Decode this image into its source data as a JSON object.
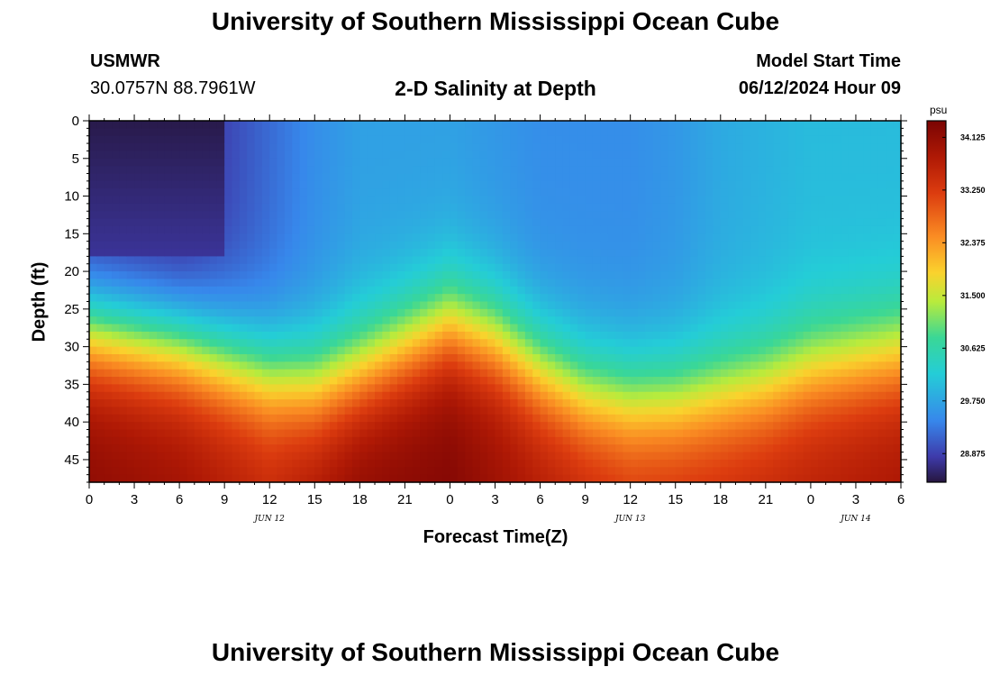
{
  "page_title": "University of Southern Mississippi Ocean Cube",
  "footer_title": "University of Southern Mississippi Ocean Cube",
  "station": {
    "id": "USMWR",
    "coords": "30.0757N  88.7961W"
  },
  "model_start": {
    "label": "Model Start Time",
    "value": "06/12/2024 Hour 09"
  },
  "chart_data": {
    "type": "heatmap",
    "title": "2-D Salinity at Depth",
    "xlabel": "Forecast Time(Z)",
    "ylabel": "Depth (ft)",
    "x_range_hours": [
      0,
      54
    ],
    "y_range_ft": [
      0,
      48
    ],
    "x_ticks": [
      "0",
      "3",
      "6",
      "9",
      "12",
      "15",
      "18",
      "21",
      "0",
      "3",
      "6",
      "9",
      "12",
      "15",
      "18",
      "21",
      "0",
      "3",
      "6"
    ],
    "date_labels": [
      {
        "text": "JUN 12",
        "hour": 12
      },
      {
        "text": "JUN 13",
        "hour": 36
      },
      {
        "text": "JUN 14",
        "hour": 51
      }
    ],
    "y_ticks": [
      0,
      5,
      10,
      15,
      20,
      25,
      30,
      35,
      40,
      45
    ],
    "colorbar": {
      "unit": "psu",
      "min": 28.4,
      "max": 34.4,
      "ticks": [
        "34.125",
        "33.250",
        "32.375",
        "31.500",
        "30.625",
        "29.750",
        "28.875"
      ]
    },
    "halocline_depth_ft": {
      "hours": [
        0,
        3,
        6,
        9,
        12,
        15,
        18,
        21,
        24,
        27,
        30,
        33,
        36,
        39,
        42,
        45,
        48,
        51,
        54
      ],
      "values": [
        28,
        29,
        30,
        32,
        34,
        35,
        33,
        30,
        27,
        29,
        33,
        36,
        37,
        37,
        36,
        35,
        33,
        32,
        31
      ]
    },
    "surface_salinity_psu": {
      "hours": [
        0,
        3,
        6,
        9,
        12,
        15,
        18,
        21,
        24,
        27,
        30,
        33,
        36,
        39,
        42,
        45,
        48,
        51,
        54
      ],
      "values": [
        28.6,
        28.6,
        28.6,
        28.9,
        29.2,
        29.5,
        29.7,
        29.7,
        29.7,
        29.6,
        29.5,
        29.5,
        29.5,
        29.6,
        29.8,
        29.9,
        30.0,
        30.0,
        30.0
      ]
    },
    "bottom_salinity_psu": {
      "hours": [
        0,
        6,
        12,
        18,
        24,
        30,
        36,
        42,
        48,
        54
      ],
      "values": [
        34.2,
        34.0,
        33.6,
        34.2,
        34.3,
        33.8,
        33.4,
        33.5,
        33.7,
        33.9
      ]
    }
  }
}
